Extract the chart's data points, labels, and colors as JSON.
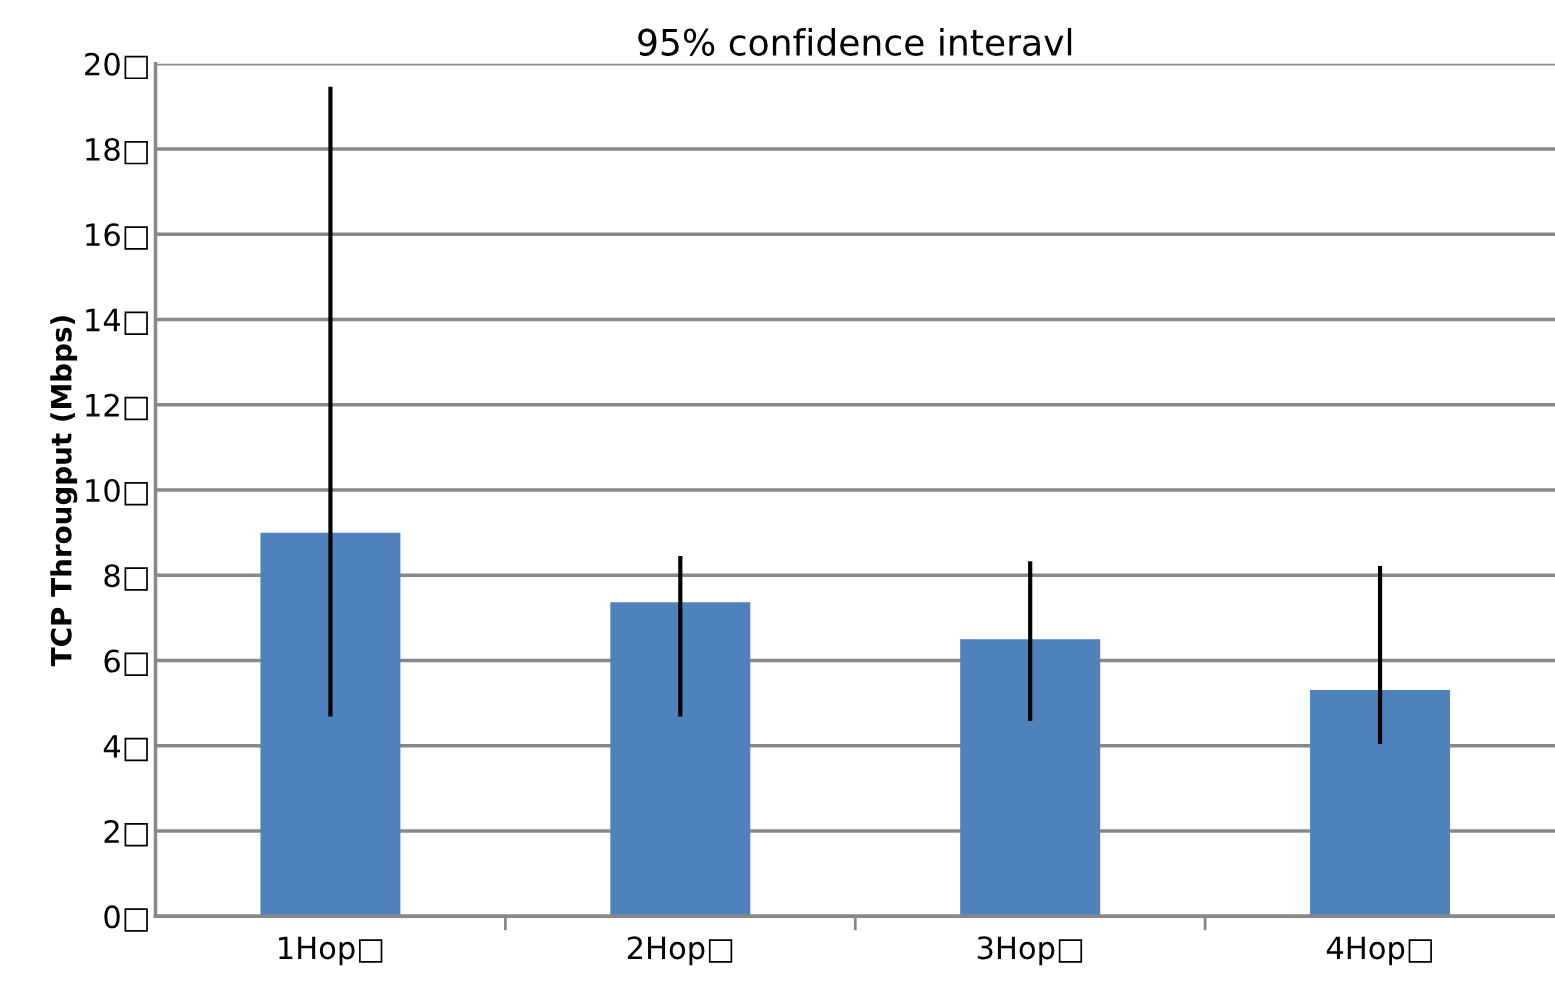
{
  "chart_data": {
    "type": "bar",
    "title": "95% confidence interavl",
    "ylabel": "TCP Througput (Mbps)",
    "categories": [
      "1Hop□",
      "2Hop□",
      "3Hop□",
      "4Hop□"
    ],
    "values": [
      9.0,
      7.37,
      6.5,
      5.31
    ],
    "errors": [
      [
        4.69,
        19.46
      ],
      [
        4.69,
        8.45
      ],
      [
        4.58,
        8.33
      ],
      [
        4.04,
        8.22
      ]
    ],
    "color": "#4f81bd",
    "ylim": [
      0,
      20
    ],
    "yticks": [
      {
        "value": 0,
        "label": "0□"
      },
      {
        "value": 2,
        "label": "2□"
      },
      {
        "value": 4,
        "label": "4□"
      },
      {
        "value": 6,
        "label": "6□"
      },
      {
        "value": 8,
        "label": "8□"
      },
      {
        "value": 10,
        "label": "10□"
      },
      {
        "value": 12,
        "label": "12□"
      },
      {
        "value": 14,
        "label": "14□"
      },
      {
        "value": 16,
        "label": "16□"
      },
      {
        "value": 18,
        "label": "18□"
      },
      {
        "value": 20,
        "label": "20□"
      }
    ],
    "grid": "y"
  }
}
